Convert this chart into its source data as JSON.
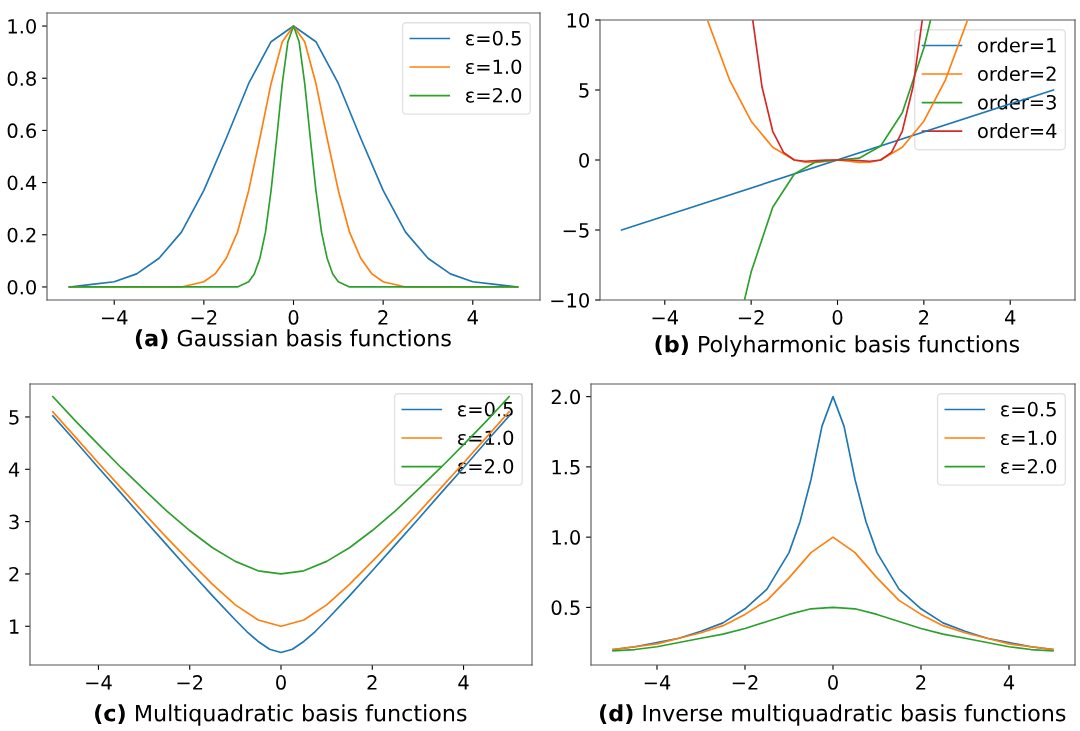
{
  "chart_data": [
    {
      "type": "line",
      "title": "(a) Gaussian basis functions",
      "xlim": [
        -5.5,
        5.5
      ],
      "ylim": [
        -0.05,
        1.05
      ],
      "xticks": [
        -4,
        -2,
        0,
        2,
        4
      ],
      "yticks": [
        {
          "value": 0,
          "label": "0.0"
        },
        0.2,
        0.4,
        0.6,
        0.8,
        {
          "value": 1,
          "label": "1.0"
        }
      ],
      "legend": "top right",
      "series": [
        {
          "name": "ε=0.5",
          "color": "#1f77b4",
          "x": [
            -5,
            -4.5,
            -4,
            -3.5,
            -3,
            -2.5,
            -2,
            -1.5,
            -1,
            -0.5,
            0,
            0.5,
            1,
            1.5,
            2,
            2.5,
            3,
            3.5,
            4,
            4.5,
            5
          ],
          "values": [
            0.0,
            0.01,
            0.02,
            0.05,
            0.11,
            0.21,
            0.37,
            0.57,
            0.78,
            0.94,
            1.0,
            0.94,
            0.78,
            0.57,
            0.37,
            0.21,
            0.11,
            0.05,
            0.02,
            0.01,
            0.0
          ]
        },
        {
          "name": "ε=1.0",
          "color": "#ff7f0e",
          "x": [
            -5,
            -3,
            -2.5,
            -2,
            -1.75,
            -1.5,
            -1.25,
            -1,
            -0.75,
            -0.5,
            -0.25,
            0,
            0.25,
            0.5,
            0.75,
            1,
            1.25,
            1.5,
            1.75,
            2,
            2.5,
            3,
            5
          ],
          "values": [
            0.0,
            0.0,
            0.0,
            0.02,
            0.05,
            0.11,
            0.21,
            0.37,
            0.57,
            0.78,
            0.94,
            1.0,
            0.94,
            0.78,
            0.57,
            0.37,
            0.21,
            0.11,
            0.05,
            0.02,
            0.0,
            0.0,
            0.0
          ]
        },
        {
          "name": "ε=2.0",
          "color": "#2ca02c",
          "x": [
            -5,
            -1.5,
            -1.25,
            -1,
            -0.875,
            -0.75,
            -0.625,
            -0.5,
            -0.375,
            -0.25,
            -0.125,
            0,
            0.125,
            0.25,
            0.375,
            0.5,
            0.625,
            0.75,
            0.875,
            1,
            1.25,
            1.5,
            5
          ],
          "values": [
            0.0,
            0.0,
            0.0,
            0.02,
            0.05,
            0.11,
            0.21,
            0.37,
            0.57,
            0.78,
            0.94,
            1.0,
            0.94,
            0.78,
            0.57,
            0.37,
            0.21,
            0.11,
            0.05,
            0.02,
            0.0,
            0.0,
            0.0
          ]
        }
      ]
    },
    {
      "type": "line",
      "title": "(b) Polyharmonic basis functions",
      "xlim": [
        -5.5,
        5.5
      ],
      "ylim": [
        -10,
        10
      ],
      "xticks": [
        -4,
        -2,
        0,
        2,
        4
      ],
      "yticks": [
        -10,
        -5,
        0,
        5,
        10
      ],
      "legend": "top right",
      "series": [
        {
          "name": "order=1",
          "color": "#1f77b4",
          "x": [
            -5,
            5
          ],
          "values": [
            -5,
            5
          ]
        },
        {
          "name": "order=2",
          "color": "#ff7f0e",
          "x": [
            -3,
            -2.5,
            -2,
            -1.5,
            -1,
            -0.75,
            -0.5,
            -0.25,
            0,
            0.25,
            0.5,
            0.75,
            1,
            1.5,
            2,
            2.5,
            3
          ],
          "values": [
            9.89,
            5.73,
            2.77,
            0.91,
            0.0,
            -0.16,
            -0.17,
            -0.09,
            0.0,
            -0.09,
            -0.17,
            -0.16,
            0.0,
            0.91,
            2.77,
            5.73,
            9.89
          ]
        },
        {
          "name": "order=3",
          "color": "#2ca02c",
          "x": [
            -2.15,
            -2,
            -1.5,
            -1,
            -0.5,
            0,
            0.5,
            1,
            1.5,
            2,
            2.15
          ],
          "values": [
            -9.94,
            -8.0,
            -3.38,
            -1.0,
            -0.13,
            0.0,
            0.13,
            1.0,
            3.38,
            8.0,
            9.94
          ]
        },
        {
          "name": "order=4",
          "color": "#d62728",
          "x": [
            -1.96,
            -1.75,
            -1.5,
            -1.25,
            -1,
            -0.75,
            -0.5,
            -0.25,
            0,
            0.25,
            0.5,
            0.75,
            1,
            1.25,
            1.5,
            1.75,
            1.96
          ],
          "values": [
            9.93,
            5.25,
            2.05,
            0.54,
            0.0,
            -0.09,
            -0.04,
            0.0,
            0.0,
            0.0,
            -0.04,
            -0.09,
            0.0,
            0.54,
            2.05,
            5.25,
            9.93
          ]
        }
      ]
    },
    {
      "type": "line",
      "title": "(c) Multiquadratic basis functions",
      "xlim": [
        -5.5,
        5.5
      ],
      "ylim": [
        0.26,
        5.63
      ],
      "xticks": [
        -4,
        -2,
        0,
        2,
        4
      ],
      "yticks": [
        1,
        2,
        3,
        4,
        5
      ],
      "legend": "top right",
      "series": [
        {
          "name": "ε=0.5",
          "color": "#1f77b4",
          "x": [
            -5,
            -4.5,
            -4,
            -3.5,
            -3,
            -2.5,
            -2,
            -1.5,
            -1,
            -0.75,
            -0.5,
            -0.25,
            0,
            0.25,
            0.5,
            0.75,
            1,
            1.5,
            2,
            2.5,
            3,
            3.5,
            4,
            4.5,
            5
          ],
          "values": [
            5.02,
            4.53,
            4.03,
            3.54,
            3.04,
            2.55,
            2.06,
            1.58,
            1.12,
            0.9,
            0.71,
            0.56,
            0.5,
            0.56,
            0.71,
            0.9,
            1.12,
            1.58,
            2.06,
            2.55,
            3.04,
            3.54,
            4.03,
            4.53,
            5.02
          ]
        },
        {
          "name": "ε=1.0",
          "color": "#ff7f0e",
          "x": [
            -5,
            -4.5,
            -4,
            -3.5,
            -3,
            -2.5,
            -2,
            -1.5,
            -1,
            -0.5,
            0,
            0.5,
            1,
            1.5,
            2,
            2.5,
            3,
            3.5,
            4,
            4.5,
            5
          ],
          "values": [
            5.1,
            4.61,
            4.12,
            3.64,
            3.16,
            2.69,
            2.24,
            1.8,
            1.41,
            1.12,
            1.0,
            1.12,
            1.41,
            1.8,
            2.24,
            2.69,
            3.16,
            3.64,
            4.12,
            4.61,
            5.1
          ]
        },
        {
          "name": "ε=2.0",
          "color": "#2ca02c",
          "x": [
            -5,
            -4.5,
            -4,
            -3.5,
            -3,
            -2.5,
            -2,
            -1.5,
            -1,
            -0.5,
            0,
            0.5,
            1,
            1.5,
            2,
            2.5,
            3,
            3.5,
            4,
            4.5,
            5
          ],
          "values": [
            5.39,
            4.92,
            4.47,
            4.03,
            3.61,
            3.2,
            2.83,
            2.5,
            2.24,
            2.06,
            2.0,
            2.06,
            2.24,
            2.5,
            2.83,
            3.2,
            3.61,
            4.03,
            4.47,
            4.92,
            5.39
          ]
        }
      ]
    },
    {
      "type": "line",
      "title": "(d) Inverse multiquadratic basis functions",
      "xlim": [
        -5.5,
        5.5
      ],
      "ylim": [
        0.09,
        2.09
      ],
      "xticks": [
        -4,
        -2,
        0,
        2,
        4
      ],
      "yticks": [
        0.5,
        {
          "value": 1,
          "label": "1.0"
        },
        1.5,
        {
          "value": 2,
          "label": "2.0"
        }
      ],
      "legend": "top right",
      "series": [
        {
          "name": "ε=0.5",
          "color": "#1f77b4",
          "x": [
            -5,
            -4.5,
            -4,
            -3.5,
            -3,
            -2.5,
            -2,
            -1.5,
            -1,
            -0.75,
            -0.5,
            -0.25,
            0,
            0.25,
            0.5,
            0.75,
            1,
            1.5,
            2,
            2.5,
            3,
            3.5,
            4,
            4.5,
            5
          ],
          "values": [
            0.2,
            0.22,
            0.25,
            0.28,
            0.33,
            0.39,
            0.49,
            0.63,
            0.89,
            1.11,
            1.41,
            1.79,
            2.0,
            1.79,
            1.41,
            1.11,
            0.89,
            0.63,
            0.49,
            0.39,
            0.33,
            0.28,
            0.25,
            0.22,
            0.2
          ]
        },
        {
          "name": "ε=1.0",
          "color": "#ff7f0e",
          "x": [
            -5,
            -4.5,
            -4,
            -3.5,
            -3,
            -2.5,
            -2,
            -1.5,
            -1,
            -0.5,
            0,
            0.5,
            1,
            1.5,
            2,
            2.5,
            3,
            3.5,
            4,
            4.5,
            5
          ],
          "values": [
            0.2,
            0.22,
            0.24,
            0.28,
            0.32,
            0.37,
            0.45,
            0.55,
            0.71,
            0.89,
            1.0,
            0.89,
            0.71,
            0.55,
            0.45,
            0.37,
            0.32,
            0.28,
            0.24,
            0.22,
            0.2
          ]
        },
        {
          "name": "ε=2.0",
          "color": "#2ca02c",
          "x": [
            -5,
            -4.5,
            -4,
            -3.5,
            -3,
            -2.5,
            -2,
            -1.5,
            -1,
            -0.5,
            0,
            0.5,
            1,
            1.5,
            2,
            2.5,
            3,
            3.5,
            4,
            4.5,
            5
          ],
          "values": [
            0.19,
            0.2,
            0.22,
            0.25,
            0.28,
            0.31,
            0.35,
            0.4,
            0.45,
            0.49,
            0.5,
            0.49,
            0.45,
            0.4,
            0.35,
            0.31,
            0.28,
            0.25,
            0.22,
            0.2,
            0.19
          ]
        }
      ]
    }
  ]
}
